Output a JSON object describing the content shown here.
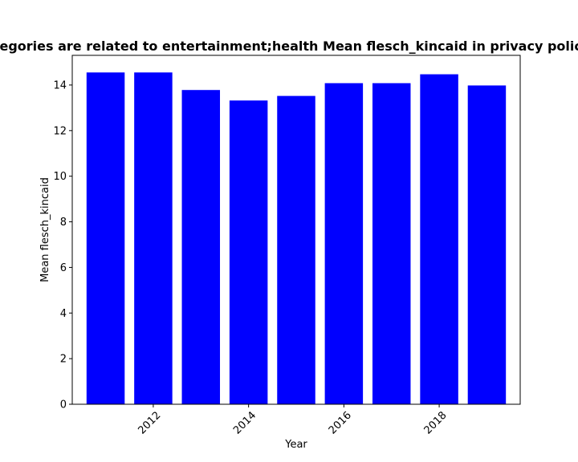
{
  "chart_data": {
    "type": "bar",
    "title": "Categories are related to entertainment;health Mean flesch_kincaid in privacy policies",
    "xlabel": "Year",
    "ylabel": "Mean flesch_kincaid",
    "categories": [
      2011,
      2012,
      2013,
      2014,
      2015,
      2016,
      2017,
      2018,
      2019
    ],
    "values": [
      14.55,
      14.55,
      13.78,
      13.32,
      13.52,
      14.08,
      14.08,
      14.47,
      13.98
    ],
    "bar_color": "#0000ff",
    "xlim": [
      2010.3,
      2019.7
    ],
    "ylim": [
      0,
      15.3
    ],
    "x_ticks": [
      2012,
      2014,
      2016,
      2018
    ],
    "y_ticks": [
      0,
      2,
      4,
      6,
      8,
      10,
      12,
      14
    ],
    "grid": false,
    "legend": "none"
  }
}
